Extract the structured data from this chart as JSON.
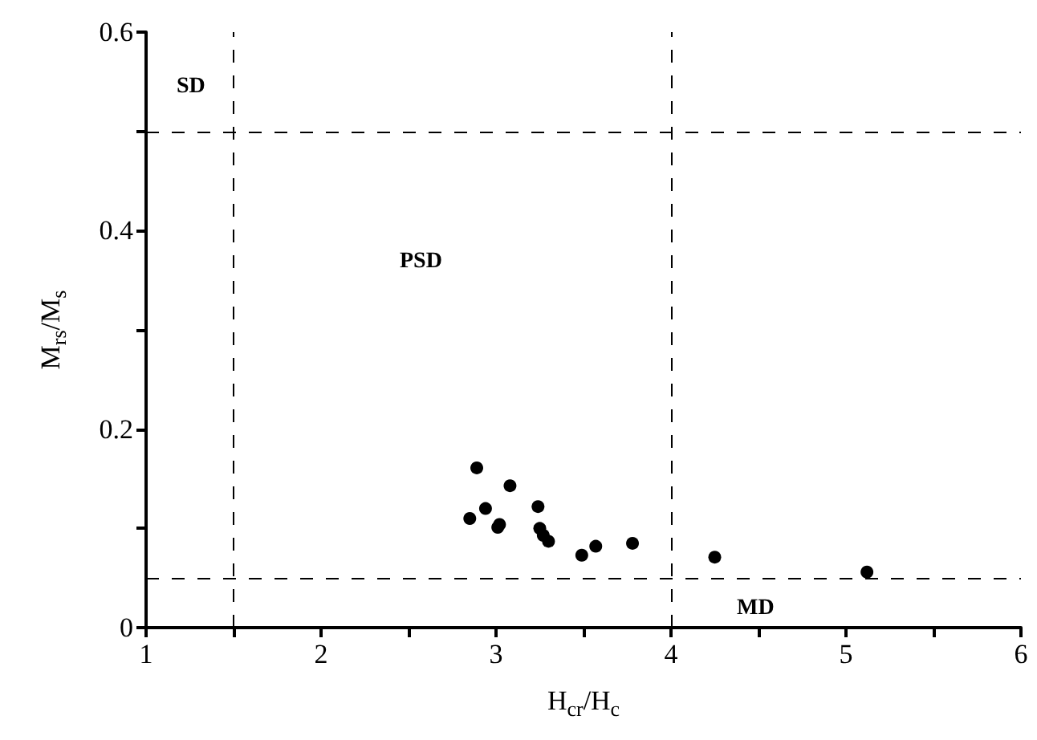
{
  "chart_data": {
    "type": "scatter",
    "xlabel": "H$_{cr}$/H$_{c}$",
    "ylabel": "M$_{rs}$/M$_{s}$",
    "x": [
      2.89,
      3.08,
      2.85,
      2.94,
      3.02,
      3.01,
      3.24,
      3.25,
      3.27,
      3.3,
      3.49,
      3.57,
      3.78,
      4.25,
      5.12
    ],
    "values": [
      0.161,
      0.143,
      0.11,
      0.12,
      0.104,
      0.101,
      0.122,
      0.1,
      0.093,
      0.087,
      0.073,
      0.082,
      0.085,
      0.071,
      0.056
    ],
    "color": "#000000",
    "marker": "circle",
    "grid": false,
    "xlim": [
      1,
      6
    ],
    "xticks": [
      1,
      {
        "value": 1.5,
        "label": null
      },
      2,
      {
        "value": 2.5,
        "label": null
      },
      3,
      {
        "value": 3.5,
        "label": null
      },
      4,
      {
        "value": 4.5,
        "label": null
      },
      5,
      {
        "value": 5.5,
        "label": null
      },
      6
    ],
    "ylim": [
      0,
      0.6
    ],
    "yticks": [
      0,
      {
        "value": 0.1,
        "label": null
      },
      0.2,
      {
        "value": 0.3,
        "label": null
      },
      0.4,
      {
        "value": 0.5,
        "label": null
      },
      0.6
    ],
    "ref_lines": [
      {
        "axis": "x",
        "value": 1.5,
        "line_style": "dashed",
        "color": "#000000"
      },
      {
        "axis": "x",
        "value": 4,
        "line_style": "dashed",
        "color": "#000000"
      },
      {
        "axis": "y",
        "value": 0.5,
        "line_style": "dashed",
        "color": "#000000"
      },
      {
        "axis": "y",
        "value": 0.05,
        "line_style": "dashed",
        "color": "#000000"
      }
    ],
    "annotations": [
      "SD",
      "PSD",
      "MD"
    ]
  }
}
